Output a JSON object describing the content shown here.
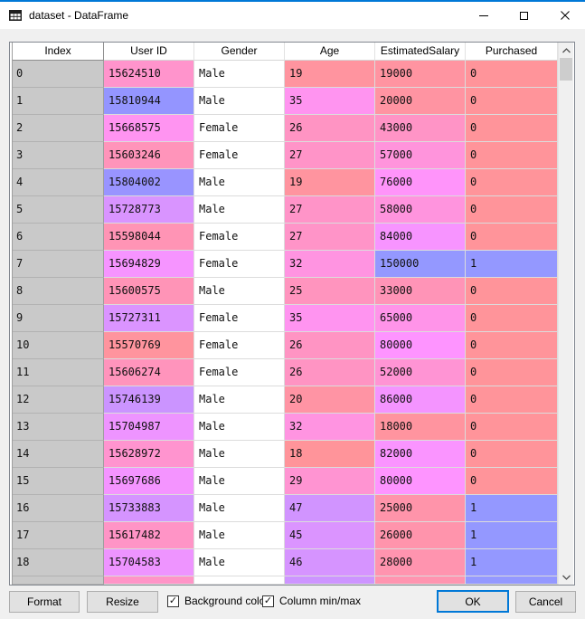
{
  "window": {
    "title": "dataset - DataFrame"
  },
  "table": {
    "index_header": "Index",
    "columns": [
      "User ID",
      "Gender",
      "Age",
      "EstimatedSalary",
      "Purchased"
    ],
    "rows": [
      {
        "index": "0",
        "cells": [
          {
            "t": "15624510",
            "bg": "#FF94CC"
          },
          {
            "t": "Male",
            "bg": "#FFFFFF"
          },
          {
            "t": "19",
            "bg": "#FF949F"
          },
          {
            "t": "19000",
            "bg": "#FF94A1"
          },
          {
            "t": "0",
            "bg": "#FF949A"
          }
        ]
      },
      {
        "index": "1",
        "cells": [
          {
            "t": "15810944",
            "bg": "#9495FF"
          },
          {
            "t": "Male",
            "bg": "#FFFFFF"
          },
          {
            "t": "35",
            "bg": "#FF94F0"
          },
          {
            "t": "20000",
            "bg": "#FF94A2"
          },
          {
            "t": "0",
            "bg": "#FF949A"
          }
        ]
      },
      {
        "index": "2",
        "cells": [
          {
            "t": "15668575",
            "bg": "#FF94F1"
          },
          {
            "t": "Female",
            "bg": "#FFFFFF"
          },
          {
            "t": "26",
            "bg": "#FF94C3"
          },
          {
            "t": "43000",
            "bg": "#FF94C6"
          },
          {
            "t": "0",
            "bg": "#FF949A"
          }
        ]
      },
      {
        "index": "3",
        "cells": [
          {
            "t": "15603246",
            "bg": "#FF94BA"
          },
          {
            "t": "Female",
            "bg": "#FFFFFF"
          },
          {
            "t": "27",
            "bg": "#FF94C8"
          },
          {
            "t": "57000",
            "bg": "#FF94DC"
          },
          {
            "t": "0",
            "bg": "#FF949A"
          }
        ]
      },
      {
        "index": "4",
        "cells": [
          {
            "t": "15804002",
            "bg": "#9994FF"
          },
          {
            "t": "Male",
            "bg": "#FFFFFF"
          },
          {
            "t": "19",
            "bg": "#FF949F"
          },
          {
            "t": "76000",
            "bg": "#FF94FA"
          },
          {
            "t": "0",
            "bg": "#FF949A"
          }
        ]
      },
      {
        "index": "5",
        "cells": [
          {
            "t": "15728773",
            "bg": "#D994FF"
          },
          {
            "t": "Male",
            "bg": "#FFFFFF"
          },
          {
            "t": "27",
            "bg": "#FF94C8"
          },
          {
            "t": "58000",
            "bg": "#FF94DE"
          },
          {
            "t": "0",
            "bg": "#FF949A"
          }
        ]
      },
      {
        "index": "6",
        "cells": [
          {
            "t": "15598044",
            "bg": "#FF94B5"
          },
          {
            "t": "Female",
            "bg": "#FFFFFF"
          },
          {
            "t": "27",
            "bg": "#FF94C8"
          },
          {
            "t": "84000",
            "bg": "#F794FF"
          },
          {
            "t": "0",
            "bg": "#FF949A"
          }
        ]
      },
      {
        "index": "7",
        "cells": [
          {
            "t": "15694829",
            "bg": "#F694FF"
          },
          {
            "t": "Female",
            "bg": "#FFFFFF"
          },
          {
            "t": "32",
            "bg": "#FF94E1"
          },
          {
            "t": "150000",
            "bg": "#9498FF"
          },
          {
            "t": "1",
            "bg": "#9498FF"
          }
        ]
      },
      {
        "index": "8",
        "cells": [
          {
            "t": "15600575",
            "bg": "#FF94B7"
          },
          {
            "t": "Male",
            "bg": "#FFFFFF"
          },
          {
            "t": "25",
            "bg": "#FF94BE"
          },
          {
            "t": "33000",
            "bg": "#FF94B7"
          },
          {
            "t": "0",
            "bg": "#FF949A"
          }
        ]
      },
      {
        "index": "9",
        "cells": [
          {
            "t": "15727311",
            "bg": "#DB94FF"
          },
          {
            "t": "Female",
            "bg": "#FFFFFF"
          },
          {
            "t": "35",
            "bg": "#FF94F0"
          },
          {
            "t": "65000",
            "bg": "#FF94E9"
          },
          {
            "t": "0",
            "bg": "#FF949A"
          }
        ]
      },
      {
        "index": "10",
        "cells": [
          {
            "t": "15570769",
            "bg": "#FF949E"
          },
          {
            "t": "Female",
            "bg": "#FFFFFF"
          },
          {
            "t": "26",
            "bg": "#FF94C3"
          },
          {
            "t": "80000",
            "bg": "#FE94FF"
          },
          {
            "t": "0",
            "bg": "#FF949A"
          }
        ]
      },
      {
        "index": "11",
        "cells": [
          {
            "t": "15606274",
            "bg": "#FF94BC"
          },
          {
            "t": "Female",
            "bg": "#FFFFFF"
          },
          {
            "t": "26",
            "bg": "#FF94C3"
          },
          {
            "t": "52000",
            "bg": "#FF94D4"
          },
          {
            "t": "0",
            "bg": "#FF949A"
          }
        ]
      },
      {
        "index": "12",
        "cells": [
          {
            "t": "15746139",
            "bg": "#CB94FF"
          },
          {
            "t": "Male",
            "bg": "#FFFFFF"
          },
          {
            "t": "20",
            "bg": "#FF94A4"
          },
          {
            "t": "86000",
            "bg": "#F494FF"
          },
          {
            "t": "0",
            "bg": "#FF949A"
          }
        ]
      },
      {
        "index": "13",
        "cells": [
          {
            "t": "15704987",
            "bg": "#EE94FF"
          },
          {
            "t": "Male",
            "bg": "#FFFFFF"
          },
          {
            "t": "32",
            "bg": "#FF94E1"
          },
          {
            "t": "18000",
            "bg": "#FF949F"
          },
          {
            "t": "0",
            "bg": "#FF949A"
          }
        ]
      },
      {
        "index": "14",
        "cells": [
          {
            "t": "15628972",
            "bg": "#FF94CF"
          },
          {
            "t": "Male",
            "bg": "#FFFFFF"
          },
          {
            "t": "18",
            "bg": "#FF949A"
          },
          {
            "t": "82000",
            "bg": "#FA94FF"
          },
          {
            "t": "0",
            "bg": "#FF949A"
          }
        ]
      },
      {
        "index": "15",
        "cells": [
          {
            "t": "15697686",
            "bg": "#F494FF"
          },
          {
            "t": "Male",
            "bg": "#FFFFFF"
          },
          {
            "t": "29",
            "bg": "#FF94D2"
          },
          {
            "t": "80000",
            "bg": "#FE94FF"
          },
          {
            "t": "0",
            "bg": "#FF949A"
          }
        ]
      },
      {
        "index": "16",
        "cells": [
          {
            "t": "15733883",
            "bg": "#D594FF"
          },
          {
            "t": "Male",
            "bg": "#FFFFFF"
          },
          {
            "t": "47",
            "bg": "#D194FF"
          },
          {
            "t": "25000",
            "bg": "#FF94AA"
          },
          {
            "t": "1",
            "bg": "#9498FF"
          }
        ]
      },
      {
        "index": "17",
        "cells": [
          {
            "t": "15617482",
            "bg": "#FF94C6"
          },
          {
            "t": "Male",
            "bg": "#FFFFFF"
          },
          {
            "t": "45",
            "bg": "#DB94FF"
          },
          {
            "t": "26000",
            "bg": "#FF94AC"
          },
          {
            "t": "1",
            "bg": "#9498FF"
          }
        ]
      },
      {
        "index": "18",
        "cells": [
          {
            "t": "15704583",
            "bg": "#EE94FF"
          },
          {
            "t": "Male",
            "bg": "#FFFFFF"
          },
          {
            "t": "46",
            "bg": "#D694FF"
          },
          {
            "t": "28000",
            "bg": "#FF94AF"
          },
          {
            "t": "1",
            "bg": "#9498FF"
          }
        ]
      }
    ],
    "partial_row": {
      "index_bg": "#C9C9C9",
      "cells": [
        "#FF94C7",
        "#FFFFFF",
        "#CD94FF",
        "#FF94B0",
        "#9498FF"
      ]
    }
  },
  "footer": {
    "format_label": "Format",
    "resize_label": "Resize",
    "bg_color_checkbox": {
      "label": "Background color",
      "checked": true
    },
    "min_max_checkbox": {
      "label": "Column min/max",
      "checked": true
    },
    "ok_label": "OK",
    "cancel_label": "Cancel"
  },
  "colors": {
    "accent": "#0078D7",
    "index_bg": "#C9C9C9",
    "string_cell_bg": "#FFFFFF",
    "min_value_cell": "#FF949A",
    "max_value_cell": "#9498FF",
    "dialog_bg": "#F0F0F0",
    "titlebar_bg": "#FFFFFF",
    "button_bg": "#E1E1E1",
    "button_border": "#ADADAD",
    "frame_border": "#828790",
    "scroll_track": "#F0F0F0",
    "scroll_thumb": "#CDCDCD"
  },
  "icons": {
    "app": "dataframe-table-icon",
    "controls": [
      "minimize-icon",
      "maximize-icon",
      "close-icon"
    ],
    "scrollbar": [
      "chevron-up-icon",
      "chevron-down-icon"
    ],
    "checkbox_mark": "check-icon"
  }
}
